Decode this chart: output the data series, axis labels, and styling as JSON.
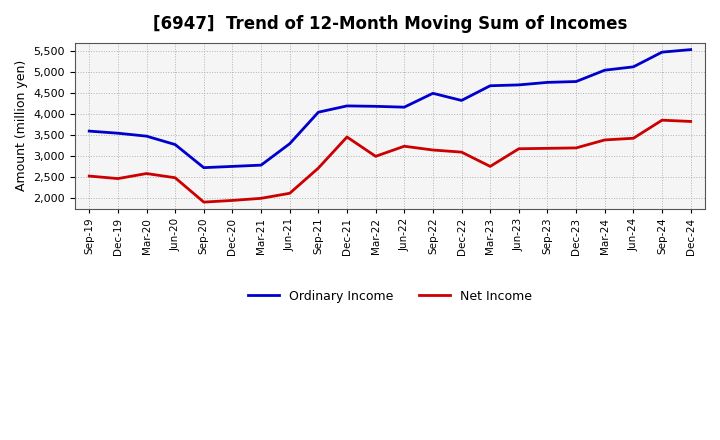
{
  "title": "[6947]  Trend of 12-Month Moving Sum of Incomes",
  "ylabel": "Amount (million yen)",
  "background_color": "#ffffff",
  "plot_background": "#f5f5f5",
  "grid_color": "#aaaaaa",
  "x_labels": [
    "Sep-19",
    "Dec-19",
    "Mar-20",
    "Jun-20",
    "Sep-20",
    "Dec-20",
    "Mar-21",
    "Jun-21",
    "Sep-21",
    "Dec-21",
    "Mar-22",
    "Jun-22",
    "Sep-22",
    "Dec-22",
    "Mar-23",
    "Jun-23",
    "Sep-23",
    "Dec-23",
    "Mar-24",
    "Jun-24",
    "Sep-24",
    "Dec-24"
  ],
  "ordinary_income": [
    3600,
    3550,
    3480,
    3280,
    2730,
    2760,
    2790,
    3300,
    4050,
    4200,
    4190,
    4170,
    4500,
    4330,
    4680,
    4700,
    4760,
    4780,
    5050,
    5130,
    5480,
    5540
  ],
  "net_income": [
    2530,
    2470,
    2590,
    2490,
    1910,
    1950,
    2000,
    2120,
    2720,
    3460,
    3000,
    3240,
    3150,
    3100,
    2760,
    3180,
    3190,
    3200,
    3390,
    3430,
    3860,
    3830
  ],
  "ordinary_color": "#0000cc",
  "net_color": "#cc0000",
  "ylim": [
    1750,
    5700
  ],
  "yticks": [
    2000,
    2500,
    3000,
    3500,
    4000,
    4500,
    5000,
    5500
  ],
  "line_width": 2.0,
  "legend_labels": [
    "Ordinary Income",
    "Net Income"
  ]
}
